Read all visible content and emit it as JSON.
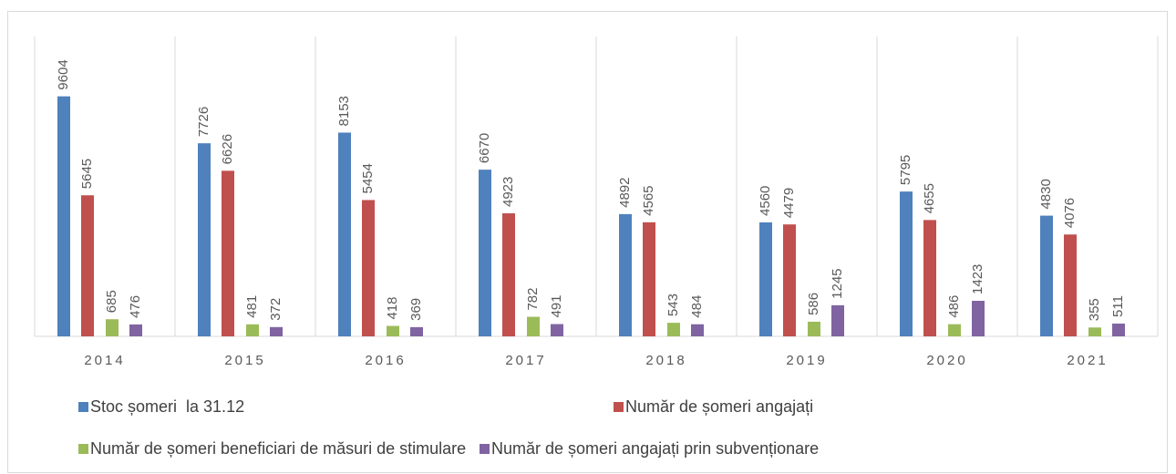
{
  "chart_data": {
    "type": "bar",
    "categories": [
      "2014",
      "2015",
      "2016",
      "2017",
      "2018",
      "2019",
      "2020",
      "2021"
    ],
    "series": [
      {
        "name": "Stoc șomeri  la 31.12",
        "color": "#4f81bd",
        "values": [
          9604,
          7726,
          8153,
          6670,
          4892,
          4560,
          5795,
          4830
        ]
      },
      {
        "name": "Număr de șomeri angajați",
        "color": "#c0504d",
        "values": [
          5645,
          6626,
          5454,
          4923,
          4565,
          4479,
          4655,
          4076
        ]
      },
      {
        "name": "Număr de șomeri beneficiari de măsuri de stimulare",
        "color": "#9bbb59",
        "values": [
          685,
          481,
          418,
          782,
          543,
          586,
          486,
          355
        ]
      },
      {
        "name": "Număr de șomeri angajați prin subvenționare",
        "color": "#8064a2",
        "values": [
          476,
          372,
          369,
          491,
          484,
          1245,
          1423,
          511
        ]
      }
    ],
    "ylim": [
      0,
      12000
    ],
    "legend": "bottom"
  }
}
